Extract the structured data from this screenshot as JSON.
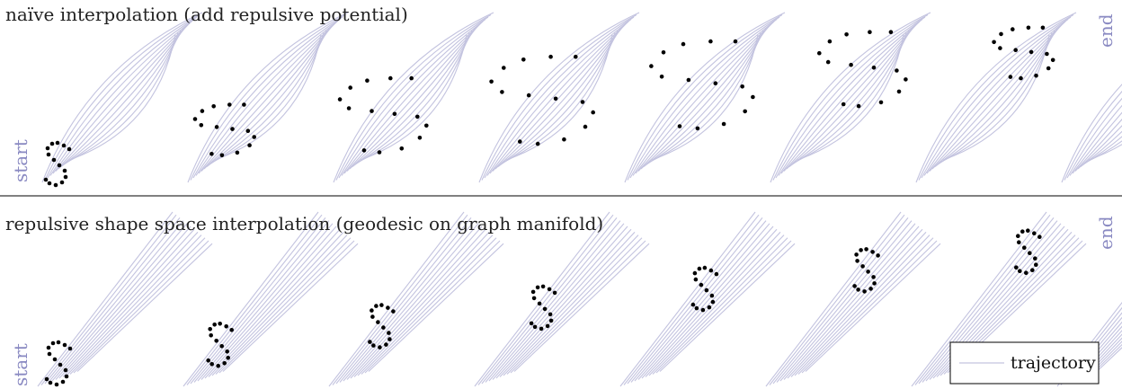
{
  "panels": [
    {
      "id": "naive",
      "title": "naïve interpolation (add repulsive potential)",
      "start_label": "start",
      "end_label": "end",
      "frames": 8
    },
    {
      "id": "repulsive",
      "title": "repulsive shape space interpolation (geodesic on graph manifold)",
      "start_label": "start",
      "end_label": "end",
      "frames": 8
    }
  ],
  "legend": {
    "label": "trajectory",
    "line_color": "#c3c3df"
  },
  "colors": {
    "points": "#000000",
    "trajectory": "#c3c3df",
    "side_labels": "#8a8ac2",
    "divider": "#000000"
  }
}
